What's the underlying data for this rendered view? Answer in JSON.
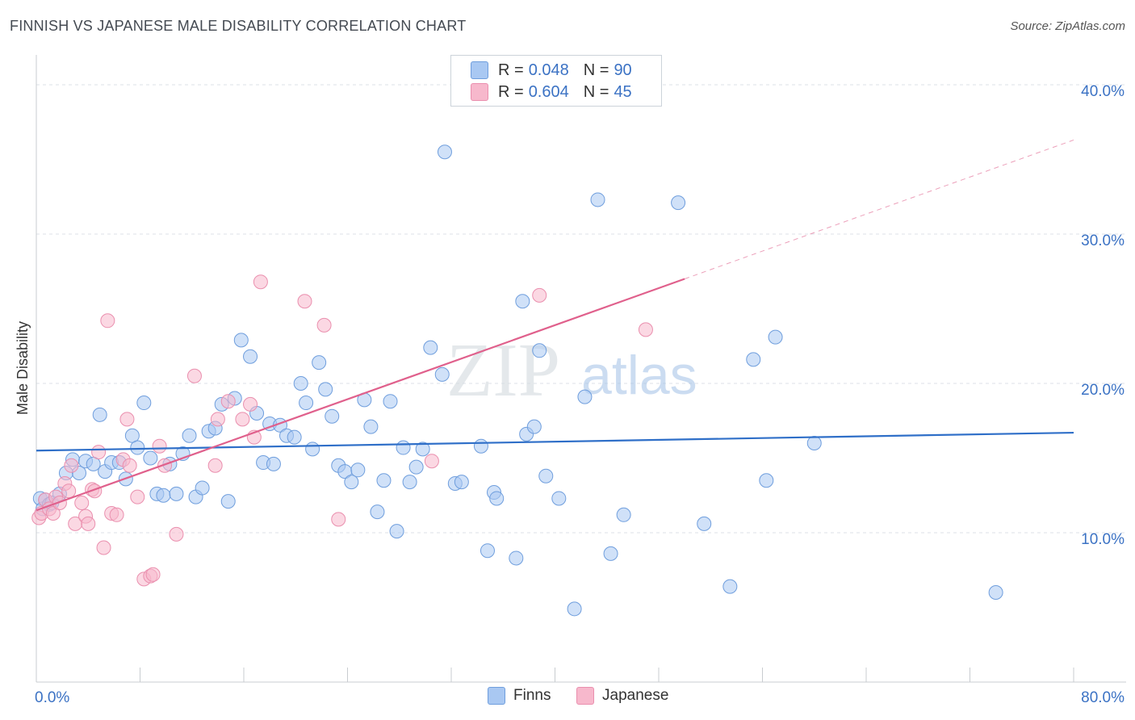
{
  "header": {
    "title": "FINNISH VS JAPANESE MALE DISABILITY CORRELATION CHART",
    "source": "Source: ZipAtlas.com"
  },
  "watermark": {
    "zip": "ZIP",
    "atlas": "atlas"
  },
  "legend_stats": [
    {
      "r_label": "R =",
      "r_value": "0.048",
      "n_label": "N =",
      "n_value": "90",
      "color": "#a9c8f2"
    },
    {
      "r_label": "R =",
      "r_value": "0.604",
      "n_label": "N =",
      "n_value": "45",
      "color": "#f7b8cc"
    }
  ],
  "chart_data": {
    "type": "scatter",
    "title": "FINNISH VS JAPANESE MALE DISABILITY CORRELATION CHART",
    "ylabel": "Male Disability",
    "xlabel": "",
    "x_range": [
      0,
      80
    ],
    "y_range": [
      0,
      42
    ],
    "x_tick_labels": [
      {
        "value": 0,
        "label": "0.0%"
      },
      {
        "value": 80,
        "label": "80.0%"
      }
    ],
    "y_tick_labels": [
      {
        "value": 10,
        "label": "10.0%"
      },
      {
        "value": 20,
        "label": "20.0%"
      },
      {
        "value": 30,
        "label": "30.0%"
      },
      {
        "value": 40,
        "label": "40.0%"
      }
    ],
    "grid": true,
    "legend_position": "bottom",
    "series": [
      {
        "name": "Finns",
        "color": "#a9c8f2",
        "stroke": "#6f9edd",
        "trend_color": "#2f6fc8",
        "trend": {
          "x1": 0,
          "y1": 15.5,
          "x2": 80,
          "y2": 16.7
        },
        "points": [
          [
            0.3,
            12.3
          ],
          [
            0.5,
            11.6
          ],
          [
            0.7,
            12.2
          ],
          [
            1.0,
            11.9
          ],
          [
            1.2,
            12.0
          ],
          [
            1.8,
            12.6
          ],
          [
            2.3,
            14.0
          ],
          [
            2.8,
            14.9
          ],
          [
            3.3,
            14.0
          ],
          [
            3.8,
            14.8
          ],
          [
            4.4,
            14.6
          ],
          [
            4.9,
            17.9
          ],
          [
            5.3,
            14.1
          ],
          [
            5.8,
            14.7
          ],
          [
            6.4,
            14.7
          ],
          [
            6.9,
            13.6
          ],
          [
            7.4,
            16.5
          ],
          [
            7.8,
            15.7
          ],
          [
            8.3,
            18.7
          ],
          [
            8.8,
            15.0
          ],
          [
            9.3,
            12.6
          ],
          [
            9.8,
            12.5
          ],
          [
            10.3,
            14.6
          ],
          [
            10.8,
            12.6
          ],
          [
            11.3,
            15.3
          ],
          [
            11.8,
            16.5
          ],
          [
            12.3,
            12.4
          ],
          [
            12.8,
            13.0
          ],
          [
            13.3,
            16.8
          ],
          [
            13.8,
            17.0
          ],
          [
            14.3,
            18.6
          ],
          [
            14.8,
            12.1
          ],
          [
            15.3,
            19.0
          ],
          [
            15.8,
            22.9
          ],
          [
            16.5,
            21.8
          ],
          [
            17.0,
            18.0
          ],
          [
            17.5,
            14.7
          ],
          [
            18.0,
            17.3
          ],
          [
            18.3,
            14.6
          ],
          [
            18.8,
            17.2
          ],
          [
            19.3,
            16.5
          ],
          [
            19.9,
            16.4
          ],
          [
            20.4,
            20.0
          ],
          [
            20.8,
            18.7
          ],
          [
            21.3,
            15.6
          ],
          [
            21.8,
            21.4
          ],
          [
            22.3,
            19.6
          ],
          [
            22.8,
            17.8
          ],
          [
            23.3,
            14.5
          ],
          [
            23.8,
            14.1
          ],
          [
            24.3,
            13.4
          ],
          [
            24.8,
            14.2
          ],
          [
            25.3,
            18.9
          ],
          [
            25.8,
            17.1
          ],
          [
            26.3,
            11.4
          ],
          [
            26.8,
            13.5
          ],
          [
            27.3,
            18.8
          ],
          [
            27.8,
            10.1
          ],
          [
            28.3,
            15.7
          ],
          [
            28.8,
            13.4
          ],
          [
            29.3,
            14.4
          ],
          [
            29.8,
            15.6
          ],
          [
            30.4,
            22.4
          ],
          [
            31.3,
            20.6
          ],
          [
            31.5,
            35.5
          ],
          [
            32.3,
            13.3
          ],
          [
            32.8,
            13.4
          ],
          [
            34.3,
            15.8
          ],
          [
            34.8,
            8.8
          ],
          [
            35.3,
            12.7
          ],
          [
            35.5,
            12.3
          ],
          [
            37.0,
            8.3
          ],
          [
            37.5,
            25.5
          ],
          [
            37.8,
            16.6
          ],
          [
            38.4,
            17.1
          ],
          [
            38.8,
            22.2
          ],
          [
            39.3,
            13.8
          ],
          [
            40.3,
            12.3
          ],
          [
            41.5,
            4.9
          ],
          [
            42.3,
            19.1
          ],
          [
            43.3,
            32.3
          ],
          [
            44.3,
            8.6
          ],
          [
            45.3,
            11.2
          ],
          [
            49.5,
            32.1
          ],
          [
            51.5,
            10.6
          ],
          [
            53.5,
            6.4
          ],
          [
            55.3,
            21.6
          ],
          [
            56.3,
            13.5
          ],
          [
            57.0,
            23.1
          ],
          [
            60.0,
            16.0
          ],
          [
            74.0,
            6.0
          ]
        ]
      },
      {
        "name": "Japanese",
        "color": "#f7b8cc",
        "stroke": "#ea8fae",
        "trend_color": "#e0608c",
        "trend": {
          "x1": 0,
          "y1": 11.5,
          "x2": 50,
          "y2": 27.0
        },
        "trend_extension": {
          "x1": 50,
          "y1": 27.0,
          "x2": 80,
          "y2": 36.3
        },
        "points": [
          [
            0.2,
            11.0
          ],
          [
            0.4,
            11.3
          ],
          [
            0.7,
            12.2
          ],
          [
            1.0,
            11.6
          ],
          [
            1.3,
            11.3
          ],
          [
            1.5,
            12.4
          ],
          [
            1.8,
            12.0
          ],
          [
            2.2,
            13.3
          ],
          [
            2.5,
            12.8
          ],
          [
            2.7,
            14.5
          ],
          [
            3.0,
            10.6
          ],
          [
            3.5,
            12.0
          ],
          [
            3.8,
            11.1
          ],
          [
            4.0,
            10.6
          ],
          [
            4.3,
            12.9
          ],
          [
            4.5,
            12.8
          ],
          [
            4.8,
            15.4
          ],
          [
            5.2,
            9.0
          ],
          [
            5.5,
            24.2
          ],
          [
            5.8,
            11.3
          ],
          [
            6.2,
            11.2
          ],
          [
            6.7,
            14.9
          ],
          [
            7.0,
            17.6
          ],
          [
            7.2,
            14.5
          ],
          [
            7.8,
            12.4
          ],
          [
            8.3,
            6.9
          ],
          [
            8.8,
            7.1
          ],
          [
            9.0,
            7.2
          ],
          [
            9.5,
            15.8
          ],
          [
            9.9,
            14.5
          ],
          [
            10.8,
            9.9
          ],
          [
            12.2,
            20.5
          ],
          [
            13.8,
            14.5
          ],
          [
            14.0,
            17.6
          ],
          [
            14.8,
            18.8
          ],
          [
            15.9,
            17.6
          ],
          [
            16.5,
            18.6
          ],
          [
            16.8,
            16.4
          ],
          [
            17.3,
            26.8
          ],
          [
            20.7,
            25.5
          ],
          [
            22.2,
            23.9
          ],
          [
            23.3,
            10.9
          ],
          [
            30.5,
            14.8
          ],
          [
            38.8,
            25.9
          ],
          [
            47.0,
            23.6
          ]
        ]
      }
    ]
  }
}
